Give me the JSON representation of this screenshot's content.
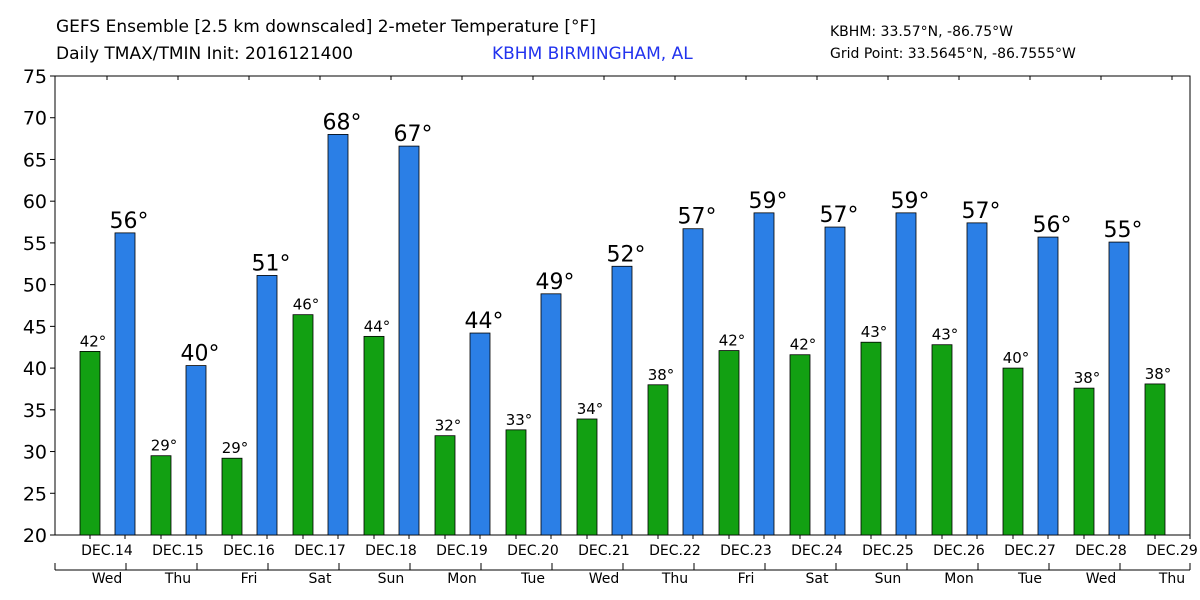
{
  "header": {
    "title_line1": "GEFS Ensemble [2.5 km downscaled] 2-meter Temperature [°F]",
    "title_line2": "Daily TMAX/TMIN Init: 2016121400",
    "station_name": "KBHM BIRMINGHAM, AL",
    "station_coords": "KBHM: 33.57°N, -86.75°W",
    "grid_point": "Grid Point: 33.5645°N, -86.7555°W"
  },
  "colors": {
    "tmax": "#2b7fe6",
    "tmin": "#12a012",
    "station": "#2233ee",
    "axis": "#000000"
  },
  "chart_data": {
    "type": "bar",
    "ylim": [
      20,
      75
    ],
    "yticks": [
      20,
      25,
      30,
      35,
      40,
      45,
      50,
      55,
      60,
      65,
      70,
      75
    ],
    "grid": false,
    "days": [
      {
        "date": "DEC.14",
        "dow": "Wed"
      },
      {
        "date": "DEC.15",
        "dow": "Thu"
      },
      {
        "date": "DEC.16",
        "dow": "Fri"
      },
      {
        "date": "DEC.17",
        "dow": "Sat"
      },
      {
        "date": "DEC.18",
        "dow": "Sun"
      },
      {
        "date": "DEC.19",
        "dow": "Mon"
      },
      {
        "date": "DEC.20",
        "dow": "Tue"
      },
      {
        "date": "DEC.21",
        "dow": "Wed"
      },
      {
        "date": "DEC.22",
        "dow": "Thu"
      },
      {
        "date": "DEC.23",
        "dow": "Fri"
      },
      {
        "date": "DEC.24",
        "dow": "Sat"
      },
      {
        "date": "DEC.25",
        "dow": "Sun"
      },
      {
        "date": "DEC.26",
        "dow": "Mon"
      },
      {
        "date": "DEC.27",
        "dow": "Tue"
      },
      {
        "date": "DEC.28",
        "dow": "Wed"
      },
      {
        "date": "DEC.29",
        "dow": "Thu"
      }
    ],
    "series": [
      {
        "kind": "tmin",
        "values": [
          42,
          29.5,
          29.2,
          46.4,
          43.8,
          31.9,
          32.6,
          33.9,
          38,
          42.1,
          41.6,
          43.1,
          42.8,
          40,
          37.6,
          38.1
        ],
        "labels": [
          "42°",
          "29°",
          "29°",
          "46°",
          "44°",
          "32°",
          "33°",
          "34°",
          "38°",
          "42°",
          "42°",
          "43°",
          "43°",
          "40°",
          "38°",
          "38°"
        ]
      },
      {
        "kind": "tmax",
        "values": [
          56.2,
          40.3,
          51.1,
          68,
          66.6,
          44.2,
          48.9,
          52.2,
          56.7,
          58.6,
          56.9,
          58.6,
          57.4,
          55.7,
          55.1
        ],
        "labels": [
          "56°",
          "40°",
          "51°",
          "68°",
          "67°",
          "44°",
          "49°",
          "52°",
          "57°",
          "59°",
          "57°",
          "59°",
          "57°",
          "56°",
          "55°"
        ]
      }
    ]
  }
}
